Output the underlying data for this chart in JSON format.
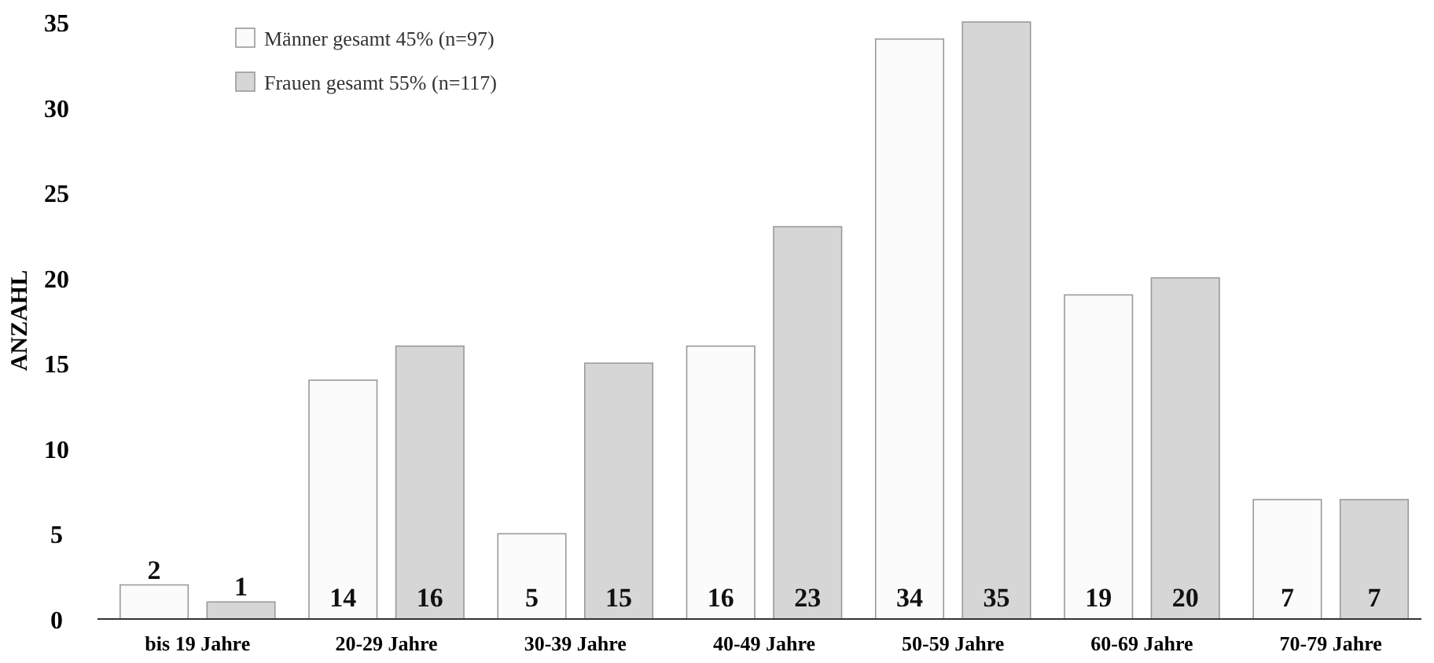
{
  "chart_data": {
    "type": "bar",
    "ylabel": "ANZAHL",
    "categories": [
      "bis 19 Jahre",
      "20-29 Jahre",
      "30-39 Jahre",
      "40-49 Jahre",
      "50-59 Jahre",
      "60-69 Jahre",
      "70-79 Jahre"
    ],
    "series": [
      {
        "name": "Männer gesamt 45% (n=97)",
        "color": "#fbfbfb",
        "values": [
          2,
          14,
          5,
          16,
          34,
          19,
          7
        ]
      },
      {
        "name": "Frauen gesamt 55% (n=117)",
        "color": "#d6d6d6",
        "values": [
          1,
          16,
          15,
          23,
          35,
          20,
          7
        ]
      }
    ],
    "ylim": [
      0,
      35
    ],
    "yticks": [
      0,
      5,
      10,
      15,
      20,
      25,
      30,
      35
    ],
    "grid": false,
    "legend": "top left",
    "data_labels": true
  }
}
